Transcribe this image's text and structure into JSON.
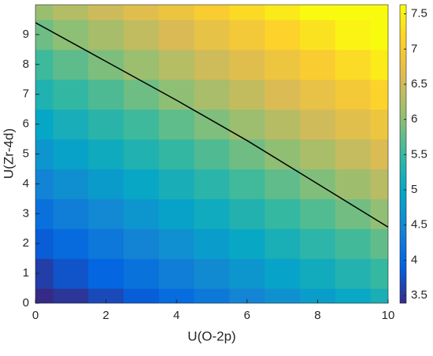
{
  "chart_data": {
    "type": "heatmap",
    "x_label": "U(O-2p)",
    "y_label": "U(Zr-4d)",
    "x": [
      0,
      1,
      2,
      3,
      4,
      5,
      6,
      7,
      8,
      9,
      10
    ],
    "y": [
      0,
      1,
      2,
      3,
      4,
      5,
      6,
      7,
      8,
      9,
      10
    ],
    "z": [
      [
        3.3,
        3.49,
        3.68,
        3.87,
        4.06,
        4.25,
        4.44,
        4.63,
        4.82,
        5.01,
        5.2
      ],
      [
        3.58,
        3.77,
        3.96,
        4.15,
        4.34,
        4.53,
        4.72,
        4.91,
        5.1,
        5.29,
        5.48
      ],
      [
        3.86,
        4.05,
        4.24,
        4.43,
        4.62,
        4.81,
        5.0,
        5.19,
        5.38,
        5.57,
        5.76
      ],
      [
        4.14,
        4.33,
        4.52,
        4.71,
        4.9,
        5.09,
        5.28,
        5.47,
        5.66,
        5.85,
        6.04
      ],
      [
        4.42,
        4.61,
        4.8,
        4.99,
        5.18,
        5.37,
        5.56,
        5.75,
        5.94,
        6.13,
        6.32
      ],
      [
        4.7,
        4.89,
        5.08,
        5.27,
        5.46,
        5.65,
        5.84,
        6.03,
        6.22,
        6.41,
        6.6
      ],
      [
        4.98,
        5.17,
        5.36,
        5.55,
        5.74,
        5.93,
        6.12,
        6.31,
        6.5,
        6.69,
        6.88
      ],
      [
        5.26,
        5.45,
        5.64,
        5.83,
        6.02,
        6.21,
        6.4,
        6.59,
        6.78,
        6.97,
        7.16
      ],
      [
        5.54,
        5.73,
        5.92,
        6.11,
        6.3,
        6.49,
        6.68,
        6.87,
        7.06,
        7.25,
        7.44
      ],
      [
        5.82,
        6.01,
        6.2,
        6.39,
        6.58,
        6.77,
        6.96,
        7.15,
        7.34,
        7.53,
        7.72
      ],
      [
        6.1,
        6.29,
        6.48,
        6.67,
        6.86,
        7.05,
        7.24,
        7.43,
        7.62,
        7.81,
        8.0
      ]
    ],
    "colormap": [
      "#352a87",
      "#0363e1",
      "#1485d4",
      "#06a7c6",
      "#38b99e",
      "#92bf73",
      "#d9ba56",
      "#fcce2e",
      "#f9fb0e"
    ],
    "clim": [
      3.39,
      7.63
    ],
    "cticks": [
      3.5,
      4,
      4.5,
      5,
      5.5,
      6,
      6.5,
      7,
      7.5
    ],
    "contour": {
      "color": "#000000",
      "x": [
        0,
        2,
        4,
        6,
        8,
        10
      ],
      "y": [
        9.4,
        8.1,
        6.8,
        5.45,
        4.0,
        2.55
      ]
    },
    "xlim": [
      0,
      10
    ],
    "ylim": [
      0,
      10
    ],
    "xticks": [
      0,
      2,
      4,
      6,
      8,
      10
    ],
    "yticks": [
      0,
      1,
      2,
      3,
      4,
      5,
      6,
      7,
      8,
      9
    ]
  }
}
